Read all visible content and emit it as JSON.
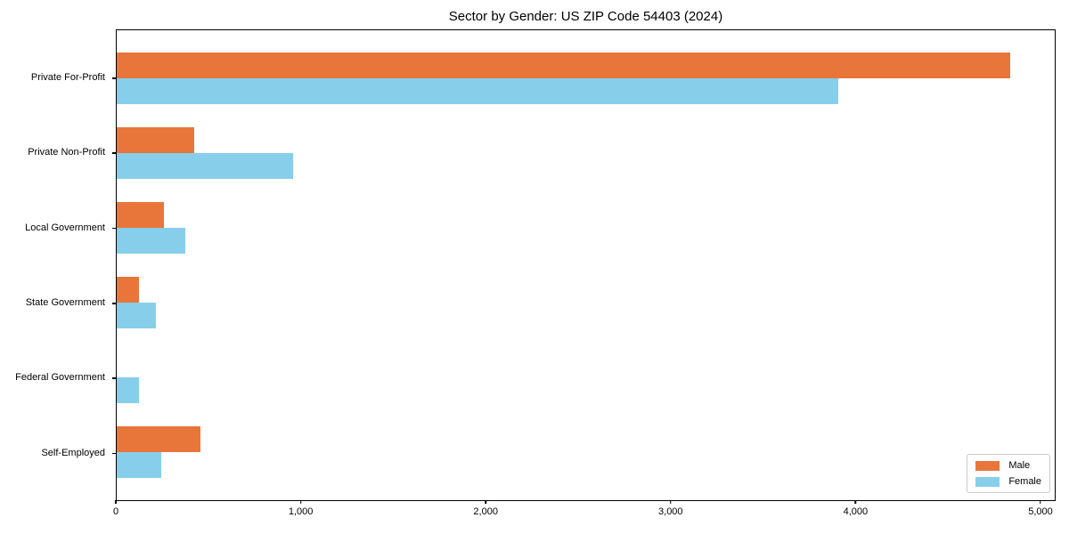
{
  "chart_data": {
    "type": "bar",
    "orientation": "horizontal",
    "title": "Sector by Gender: US ZIP Code 54403 (2024)",
    "categories": [
      "Private For-Profit",
      "Private Non-Profit",
      "Local Government",
      "State Government",
      "Federal Government",
      "Self-Employed"
    ],
    "series": [
      {
        "name": "Male",
        "color": "#E8763B",
        "values": [
          4840,
          420,
          255,
          120,
          0,
          455
        ]
      },
      {
        "name": "Female",
        "color": "#87CEEB",
        "values": [
          3910,
          955,
          370,
          210,
          120,
          240
        ]
      }
    ],
    "xlim": [
      0,
      5082
    ],
    "xticks": [
      0,
      1000,
      2000,
      3000,
      4000,
      5000
    ],
    "xtick_labels": [
      "0",
      "1,000",
      "2,000",
      "3,000",
      "4,000",
      "5,000"
    ],
    "legend_position": "lower right",
    "grid": false,
    "colors": {
      "axis": "#000000",
      "background": "#ffffff",
      "legend_border": "#cccccc"
    }
  }
}
